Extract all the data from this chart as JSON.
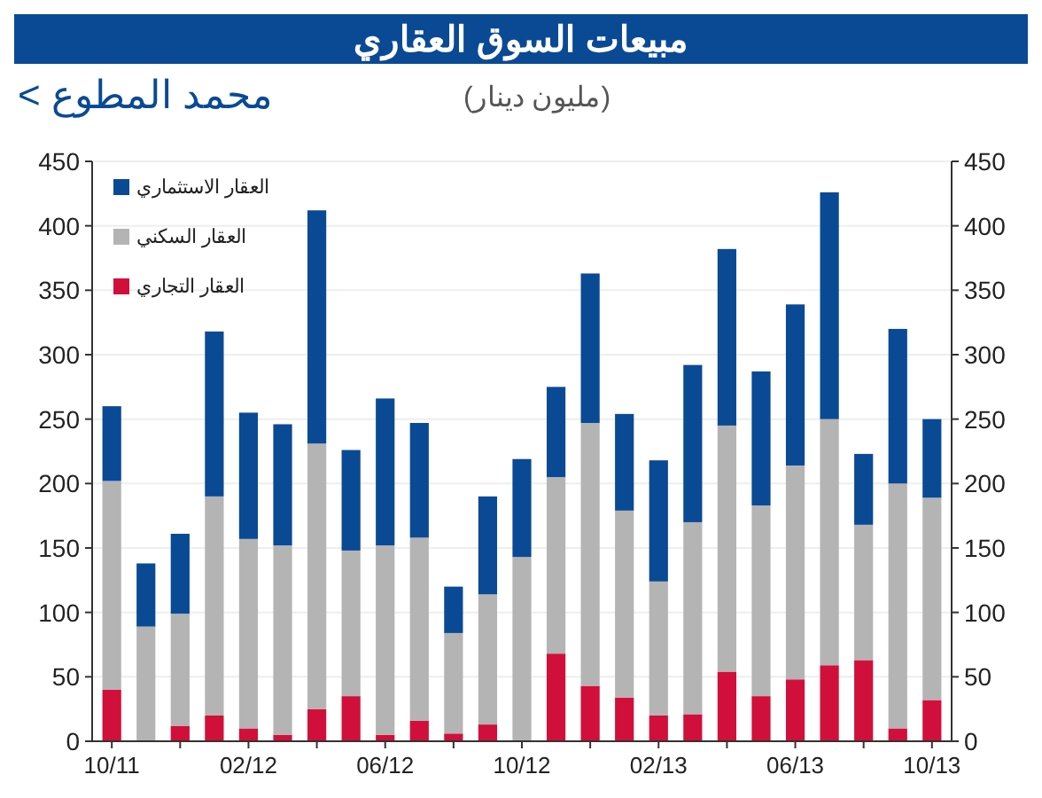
{
  "chart_data": {
    "type": "bar",
    "stacked": true,
    "title": "مبيعات السوق العقاري",
    "subtitle": "(مليون دينار)",
    "annotations": [
      "< محمد المطوع"
    ],
    "categories": [
      "10/11",
      null,
      null,
      null,
      "02/12",
      null,
      null,
      null,
      "06/12",
      null,
      null,
      null,
      "10/12",
      null,
      null,
      null,
      "02/13",
      null,
      null,
      null,
      "06/13",
      null,
      null,
      null,
      "10/13"
    ],
    "series": [
      {
        "name": "العقار التجاري",
        "color": "#d0103a",
        "values": [
          40,
          0,
          12,
          20,
          10,
          5,
          25,
          35,
          5,
          16,
          6,
          13,
          0,
          68,
          43,
          34,
          20,
          21,
          54,
          35,
          48,
          59,
          63,
          10,
          32
        ]
      },
      {
        "name": "العقار السكني",
        "color": "#b4b4b4",
        "values": [
          162,
          89,
          87,
          170,
          147,
          147,
          206,
          113,
          147,
          142,
          78,
          101,
          143,
          137,
          204,
          145,
          104,
          149,
          191,
          148,
          166,
          191,
          105,
          190,
          157
        ]
      },
      {
        "name": "العقار الاستثماري",
        "color": "#0a4a94",
        "values": [
          58,
          49,
          62,
          128,
          98,
          94,
          181,
          78,
          114,
          89,
          36,
          76,
          76,
          70,
          116,
          75,
          94,
          122,
          137,
          104,
          125,
          176,
          55,
          120,
          61
        ]
      }
    ],
    "ylim": [
      0,
      450
    ],
    "yticks": [
      0,
      50,
      100,
      150,
      200,
      250,
      300,
      350,
      400,
      450
    ],
    "y2lim": [
      0,
      450
    ],
    "y2ticks": [
      0,
      50,
      100,
      150,
      200,
      250,
      300,
      350,
      400,
      450
    ],
    "grid": "y",
    "legend": "top left"
  }
}
